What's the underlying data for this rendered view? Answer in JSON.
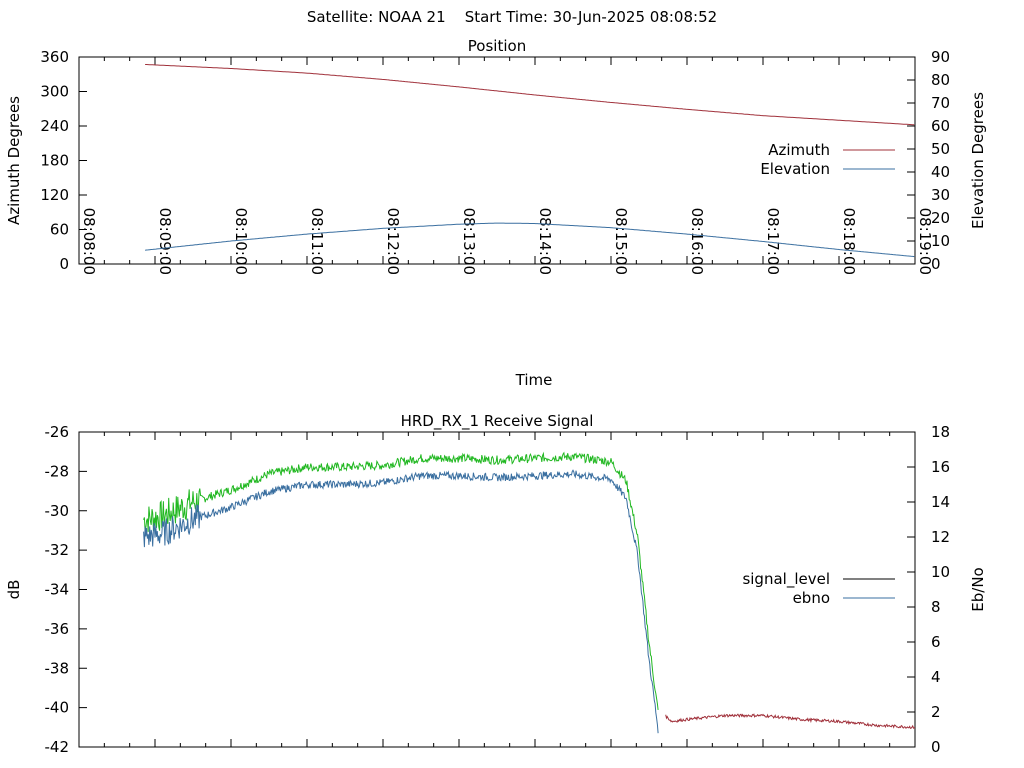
{
  "header": {
    "title": "Satellite: NOAA 21    Start Time: 30-Jun-2025 08:08:52"
  },
  "colors": {
    "azimuth": "#a0303a",
    "elevation": "#3a6fa0",
    "signal_level": "#000000",
    "signal_low": "#a0303a",
    "ebno": "#3a6fa0",
    "green_trace": "#22b822"
  },
  "chart_data": [
    {
      "type": "line",
      "title": "Position",
      "xlabel": "Time",
      "ylabel": "Azimuth Degrees",
      "y2label": "Elevation Degrees",
      "x_ticks": [
        "08:08:00",
        "08:09:00",
        "08:10:00",
        "08:11:00",
        "08:12:00",
        "08:13:00",
        "08:14:00",
        "08:15:00",
        "08:16:00",
        "08:17:00",
        "08:18:00",
        "08:19:00"
      ],
      "xlim_minutes": [
        0,
        11
      ],
      "ylim": [
        0,
        360
      ],
      "y_ticks": [
        0,
        60,
        120,
        180,
        240,
        300,
        360
      ],
      "y2lim": [
        0,
        90
      ],
      "y2_ticks": [
        0,
        10,
        20,
        30,
        40,
        50,
        60,
        70,
        80,
        90
      ],
      "legend": "right",
      "series": [
        {
          "name": "Azimuth",
          "axis": "y",
          "x_minutes": [
            0.87,
            2,
            3,
            4,
            5,
            6,
            7,
            8,
            9,
            10,
            11
          ],
          "values": [
            347,
            340,
            332,
            321,
            308,
            294,
            281,
            269,
            258,
            250,
            242
          ]
        },
        {
          "name": "Elevation",
          "axis": "y2",
          "x_minutes": [
            0.87,
            2,
            3,
            4,
            5,
            5.5,
            6,
            7,
            8,
            9,
            10,
            11
          ],
          "values": [
            6,
            10,
            13,
            15.5,
            17.3,
            17.8,
            17.6,
            15.8,
            13,
            9.8,
            6.3,
            3.2
          ]
        }
      ]
    },
    {
      "type": "line",
      "title": "HRD_RX_1 Receive Signal",
      "ylabel": "dB",
      "y2label": "Eb/No",
      "xlim_minutes": [
        0,
        11
      ],
      "ylim": [
        -42,
        -26
      ],
      "y_ticks": [
        -42,
        -40,
        -38,
        -36,
        -34,
        -32,
        -30,
        -28,
        -26
      ],
      "y2lim": [
        0,
        18
      ],
      "y2_ticks": [
        0,
        2,
        4,
        6,
        8,
        10,
        12,
        14,
        16,
        18
      ],
      "legend": "right",
      "series": [
        {
          "name": "signal_level",
          "axis": "y",
          "x_minutes": [
            0.85,
            1.1,
            1.5,
            2.0,
            2.5,
            3.0,
            3.5,
            4.0,
            4.5,
            5.0,
            5.5,
            6.0,
            6.5,
            7.0,
            7.2,
            7.35,
            7.5,
            7.65,
            7.8,
            8.0,
            8.5,
            9.0,
            9.5,
            10.0,
            10.5,
            11.0
          ],
          "values": [
            -31,
            -30.5,
            -29.8,
            -29,
            -28.2,
            -27.9,
            -27.9,
            -27.7,
            -27.3,
            -27.3,
            -27.5,
            -27.4,
            -27.3,
            -27.6,
            -28.5,
            -31.5,
            -36,
            -40.2,
            -40.7,
            -40.6,
            -40.4,
            -40.4,
            -40.6,
            -40.7,
            -40.9,
            -41
          ]
        },
        {
          "name": "ebno",
          "axis": "y2",
          "x_minutes": [
            0.85,
            1.1,
            1.5,
            2.0,
            2.5,
            3.0,
            3.5,
            4.0,
            4.5,
            5.0,
            5.5,
            6.0,
            6.5,
            7.0,
            7.2,
            7.35,
            7.5,
            7.65
          ],
          "values": [
            12,
            12.2,
            13,
            13.7,
            14.6,
            15,
            15,
            15.1,
            15.5,
            15.5,
            15.4,
            15.5,
            15.6,
            15.3,
            14.2,
            11,
            5,
            0
          ]
        }
      ]
    }
  ]
}
